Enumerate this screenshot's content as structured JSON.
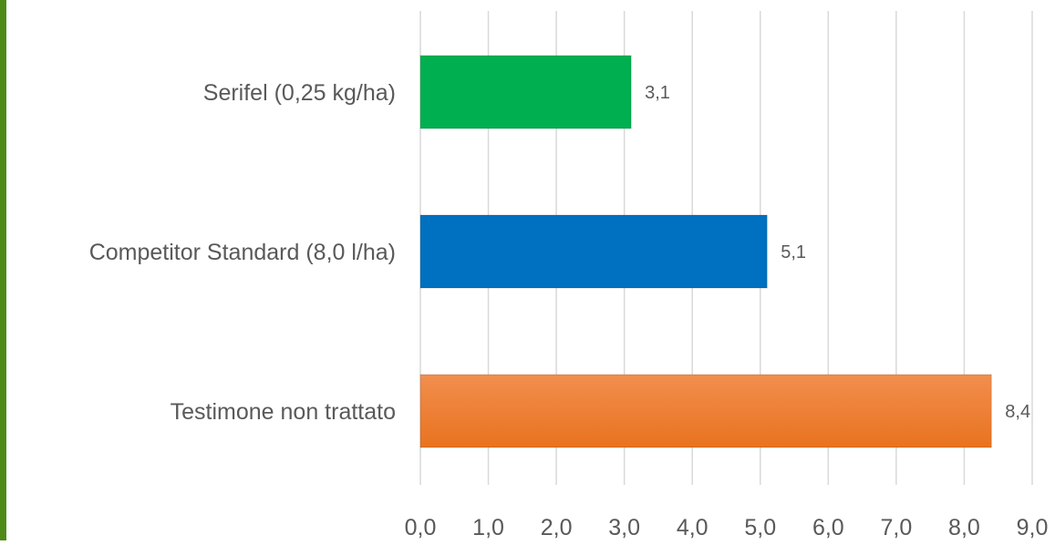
{
  "chart_data": {
    "type": "bar",
    "orientation": "horizontal",
    "categories": [
      "Serifel (0,25 kg/ha)",
      "Competitor Standard (8,0 l/ha)",
      "Testimone non trattato"
    ],
    "values": [
      3.1,
      5.1,
      8.4
    ],
    "value_labels": [
      "3,1",
      "5,1",
      "8,4"
    ],
    "bar_colors": [
      "#00b050",
      "#0070c0",
      "#ed7d31"
    ],
    "xlim": [
      0,
      9
    ],
    "xticks": [
      0,
      1,
      2,
      3,
      4,
      5,
      6,
      7,
      8,
      9
    ],
    "xtick_labels": [
      "0,0",
      "1,0",
      "2,0",
      "3,0",
      "4,0",
      "5,0",
      "6,0",
      "7,0",
      "8,0",
      "9,0"
    ],
    "grid": true,
    "legend": "none"
  },
  "colors": {
    "frame_accent": "#4e8a16",
    "gridline": "#d9d9d9",
    "text": "#595959"
  }
}
